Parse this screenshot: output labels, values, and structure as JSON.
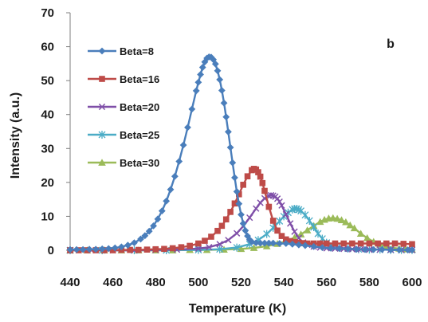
{
  "chart_data": {
    "type": "scatter",
    "panel_label": "b",
    "xlabel": "Temperature (K)",
    "ylabel": "Intensity (a.u.)",
    "xlim": [
      440,
      600
    ],
    "ylim": [
      0,
      70
    ],
    "xticks": [
      440,
      460,
      480,
      500,
      520,
      540,
      560,
      580,
      600
    ],
    "yticks": [
      0,
      10,
      20,
      30,
      40,
      50,
      60,
      70
    ],
    "grid": false,
    "legend_position": "upper-left",
    "series": [
      {
        "name": "Beta=8",
        "color": "#4a7ebb",
        "marker": "diamond",
        "x": [
          440,
          443,
          446,
          449,
          452,
          455,
          458,
          461,
          464,
          467,
          470,
          473,
          475,
          477,
          479,
          481,
          483,
          485,
          487,
          489,
          491,
          493,
          495,
          497,
          499,
          500,
          501,
          502,
          503,
          504,
          505,
          506,
          507,
          508,
          509,
          510,
          511,
          512,
          513,
          514,
          515,
          516,
          517,
          518,
          519,
          520,
          521,
          522,
          523,
          524,
          525,
          527,
          529,
          531,
          533,
          535,
          538,
          541,
          544,
          547,
          550,
          554,
          558,
          562,
          566,
          570,
          574,
          578,
          582,
          586,
          590,
          594,
          598,
          600
        ],
        "y": [
          0.2,
          0.2,
          0.2,
          0.3,
          0.3,
          0.4,
          0.5,
          0.7,
          1.0,
          1.5,
          2.2,
          3.3,
          4.3,
          5.6,
          7.2,
          9.2,
          11.6,
          14.5,
          17.9,
          21.8,
          26.2,
          31.0,
          36.2,
          41.6,
          47.0,
          49.5,
          51.8,
          53.9,
          55.5,
          56.6,
          57.0,
          56.9,
          56.2,
          54.9,
          52.9,
          50.3,
          47.1,
          43.4,
          39.3,
          34.9,
          30.3,
          25.8,
          21.4,
          17.3,
          13.7,
          10.5,
          7.9,
          5.8,
          4.2,
          3.1,
          2.5,
          2.2,
          2.1,
          2.1,
          2.1,
          2.1,
          2.0,
          2.0,
          1.8,
          1.6,
          1.4,
          1.1,
          0.8,
          0.6,
          0.5,
          0.4,
          0.3,
          0.2,
          0.2,
          0.2,
          0.1,
          0.1,
          0.1,
          0.1
        ]
      },
      {
        "name": "Beta=16",
        "color": "#be4b48",
        "marker": "square",
        "x": [
          440,
          444,
          448,
          452,
          456,
          460,
          464,
          468,
          472,
          476,
          480,
          484,
          488,
          492,
          496,
          500,
          503,
          506,
          509,
          511,
          513,
          515,
          517,
          519,
          521,
          523,
          525,
          526,
          527,
          528,
          529,
          530,
          531,
          533,
          535,
          537,
          539,
          541,
          543,
          545,
          547,
          549,
          551,
          554,
          557,
          560,
          564,
          568,
          572,
          576,
          580,
          584,
          588,
          592,
          596,
          600
        ],
        "y": [
          0.0,
          0.0,
          0.0,
          0.0,
          0.0,
          0.0,
          0.1,
          0.1,
          0.1,
          0.2,
          0.3,
          0.4,
          0.6,
          0.9,
          1.3,
          2.0,
          2.8,
          4.0,
          5.7,
          7.2,
          9.1,
          11.3,
          13.8,
          16.5,
          19.3,
          21.8,
          23.6,
          24.0,
          23.8,
          23.0,
          21.7,
          19.8,
          17.5,
          12.8,
          8.7,
          5.8,
          4.2,
          3.2,
          2.7,
          2.4,
          2.2,
          2.1,
          2.0,
          2.0,
          2.0,
          2.0,
          2.0,
          2.0,
          2.0,
          2.0,
          2.0,
          2.0,
          2.0,
          2.0,
          1.9,
          1.8
        ]
      },
      {
        "name": "Beta=20",
        "color": "#7f4fa8",
        "marker": "x",
        "x": [
          440,
          450,
          460,
          470,
          480,
          490,
          500,
          505,
          510,
          514,
          518,
          521,
          524,
          527,
          529,
          531,
          533,
          534,
          535,
          536,
          537,
          538,
          539,
          541,
          543,
          545,
          547,
          549,
          551,
          554,
          557,
          560,
          564,
          568,
          572,
          576,
          580,
          585,
          590,
          595,
          600
        ],
        "y": [
          0.0,
          0.0,
          0.0,
          0.0,
          0.1,
          0.2,
          0.5,
          0.9,
          1.8,
          3.0,
          5.0,
          7.1,
          9.6,
          12.3,
          14.0,
          15.3,
          16.1,
          16.2,
          16.1,
          15.8,
          15.2,
          14.3,
          13.2,
          10.6,
          7.9,
          5.5,
          3.6,
          2.3,
          1.6,
          1.1,
          0.8,
          0.6,
          0.5,
          0.4,
          0.3,
          0.3,
          0.2,
          0.2,
          0.2,
          0.1,
          0.1
        ]
      },
      {
        "name": "Beta=25",
        "color": "#4bacc6",
        "marker": "star",
        "x": [
          440,
          455,
          470,
          485,
          500,
          510,
          518,
          524,
          528,
          532,
          535,
          538,
          540,
          542,
          544,
          545,
          546,
          547,
          548,
          550,
          552,
          554,
          556,
          558,
          560,
          563,
          566,
          570,
          575,
          580,
          585,
          590,
          595,
          600
        ],
        "y": [
          0.0,
          0.0,
          0.0,
          0.0,
          0.1,
          0.3,
          0.8,
          1.8,
          3.0,
          4.8,
          6.6,
          8.6,
          10.0,
          11.1,
          12.0,
          12.2,
          12.2,
          12.0,
          11.6,
          10.4,
          8.7,
          6.8,
          4.9,
          3.4,
          2.2,
          1.3,
          0.8,
          0.5,
          0.3,
          0.2,
          0.2,
          0.1,
          0.1,
          0.1
        ]
      },
      {
        "name": "Beta=30",
        "color": "#9bbb59",
        "marker": "triangle",
        "x": [
          440,
          448,
          456,
          464,
          472,
          480,
          488,
          496,
          504,
          512,
          520,
          526,
          532,
          537,
          541,
          545,
          548,
          551,
          554,
          557,
          559,
          561,
          563,
          565,
          567,
          569,
          571,
          573,
          576,
          579,
          582,
          585,
          588,
          591,
          594,
          597,
          600
        ],
        "y": [
          0.0,
          0.0,
          0.0,
          0.0,
          0.0,
          0.0,
          0.0,
          0.1,
          0.1,
          0.2,
          0.4,
          0.7,
          1.2,
          1.9,
          2.7,
          3.7,
          4.7,
          5.9,
          7.2,
          8.4,
          9.0,
          9.4,
          9.5,
          9.3,
          8.9,
          8.3,
          7.4,
          6.5,
          4.9,
          3.6,
          2.5,
          1.7,
          1.1,
          0.7,
          0.5,
          0.3,
          0.2
        ]
      }
    ]
  }
}
